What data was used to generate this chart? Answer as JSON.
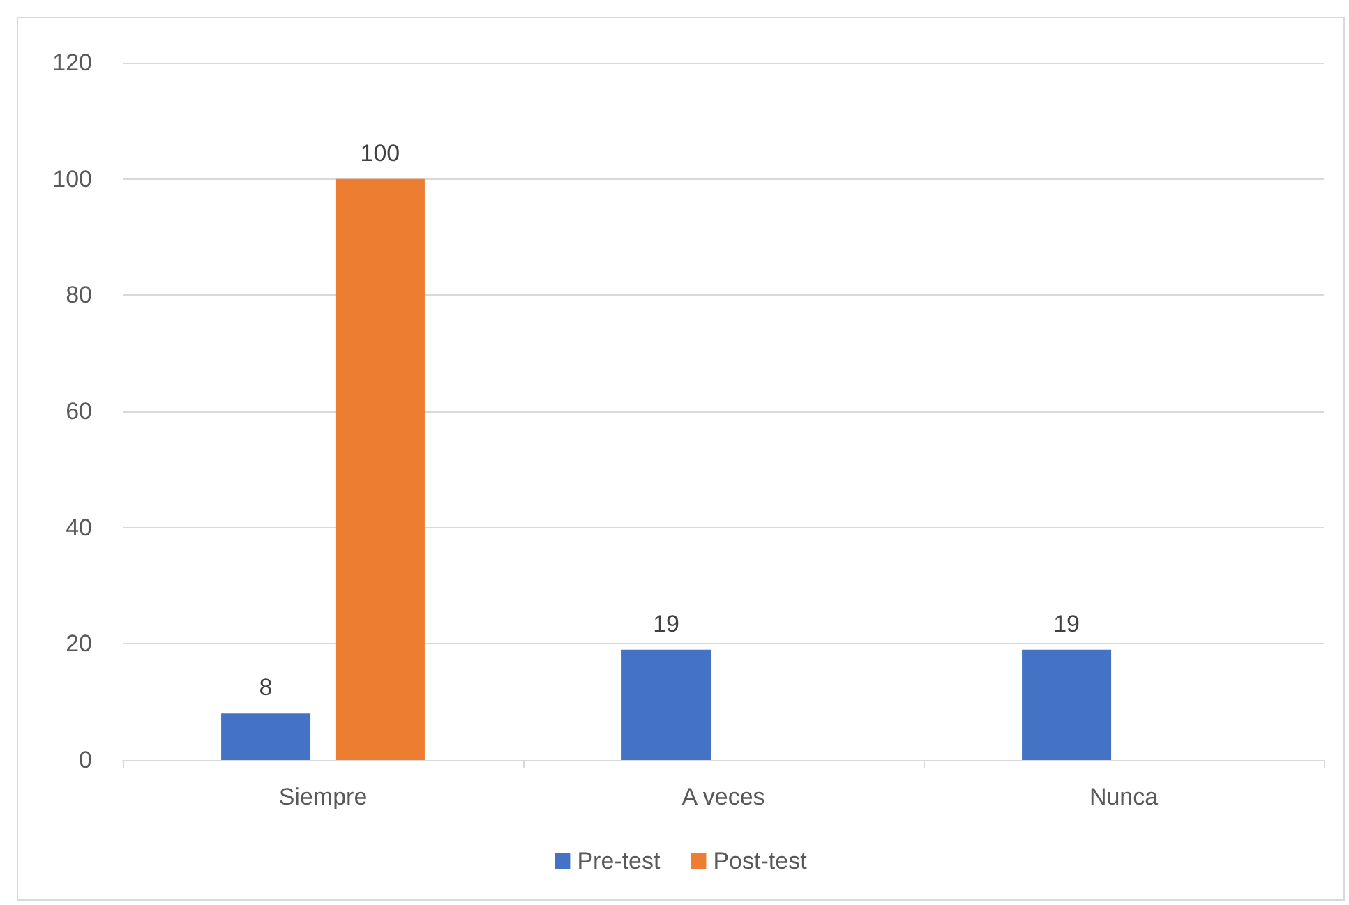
{
  "chart_data": {
    "type": "bar",
    "categories": [
      "Siempre",
      "A veces",
      "Nunca"
    ],
    "series": [
      {
        "name": "Pre-test",
        "color": "#4472c4",
        "values": [
          8,
          19,
          19
        ]
      },
      {
        "name": "Post-test",
        "color": "#ed7d31",
        "values": [
          100,
          null,
          null
        ]
      }
    ],
    "ylim": [
      0,
      120
    ],
    "yticks": [
      0,
      20,
      40,
      60,
      80,
      100,
      120
    ],
    "grid": "y",
    "legend": "bottom",
    "data_labels": true
  }
}
